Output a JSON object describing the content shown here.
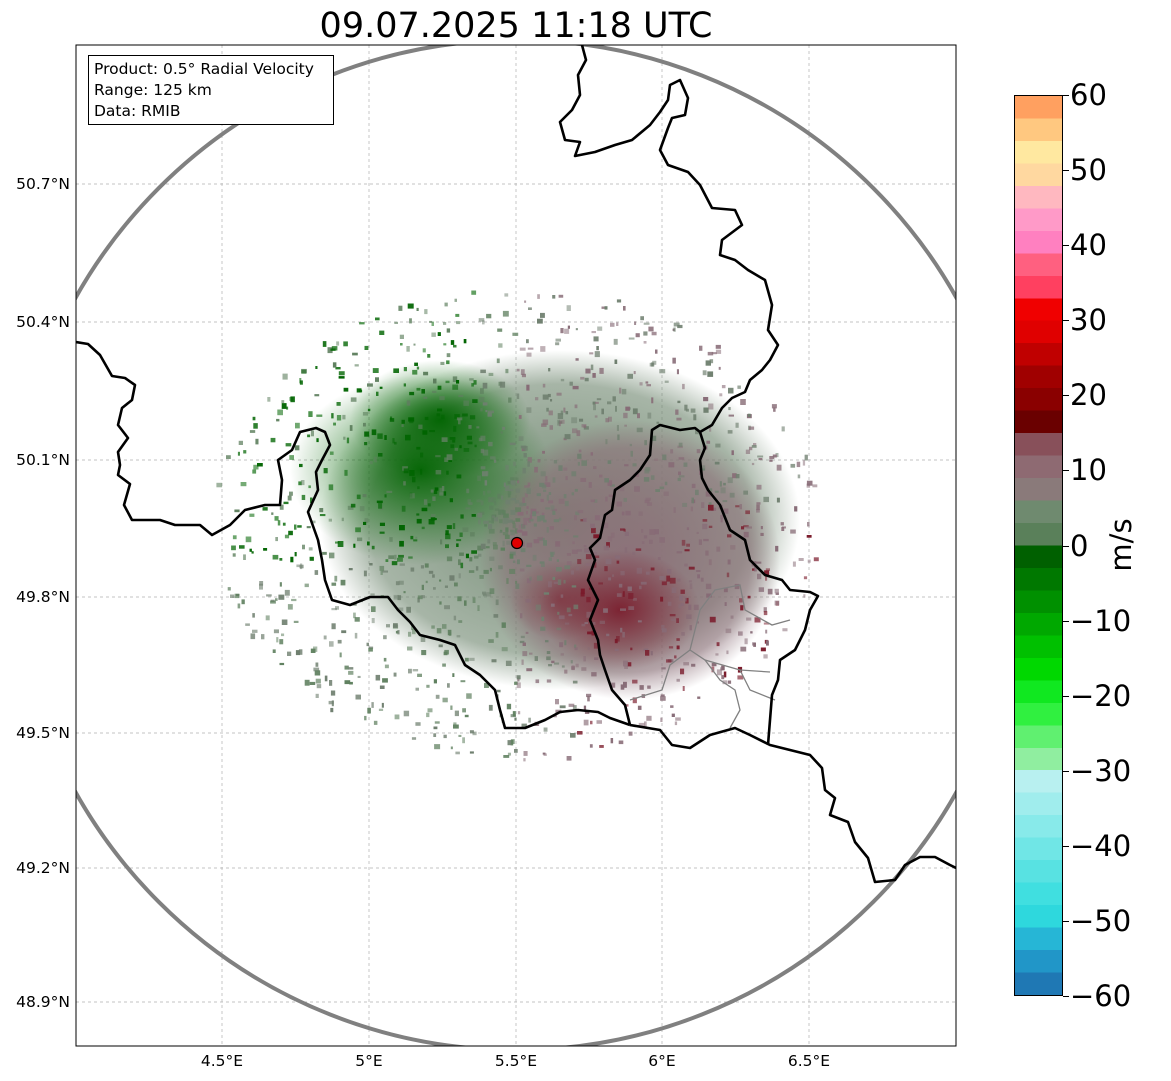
{
  "title": "09.07.2025 11:18 UTC",
  "info_box": {
    "product": "Product: 0.5° Radial Velocity",
    "range": "Range: 125 km",
    "data": "Data: RMIB"
  },
  "map": {
    "lon_range": [
      4.0,
      7.0
    ],
    "lat_range": [
      48.8,
      51.0
    ],
    "lat_ticks": [
      "50.7°N",
      "50.4°N",
      "50.1°N",
      "49.8°N",
      "49.5°N",
      "49.2°N",
      "48.9°N"
    ],
    "lon_ticks": [
      "4.5°E",
      "5°E",
      "5.5°E",
      "6°E",
      "6.5°E"
    ],
    "radar_site": {
      "lon": 5.505,
      "lat": 49.914
    },
    "range_ring_color": "#808080",
    "border_color": "#000000",
    "admin_border_color": "#808080",
    "gridlines": true
  },
  "velocity_field": {
    "dominant_colors": {
      "approaching_strong": "#006400",
      "approaching_weak": "#5e7f5e",
      "near_zero": "#6f7f6f",
      "receding_weak": "#876b76",
      "receding_strong": "#7a1a2a"
    }
  },
  "colorbar": {
    "label": "m/s",
    "ticks": [
      "60",
      "50",
      "40",
      "30",
      "20",
      "10",
      "0",
      "−10",
      "−20",
      "−30",
      "−40",
      "−50",
      "−60"
    ],
    "vmin": -60,
    "vmax": 60,
    "colors_bottom_to_top": [
      "#1f78b4",
      "#2196c8",
      "#26b6d6",
      "#2ed8dd",
      "#40dfe0",
      "#58e2e2",
      "#70e6e6",
      "#88eaea",
      "#a0eded",
      "#b8f0f0",
      "#90eea0",
      "#60f070",
      "#30f040",
      "#10e820",
      "#00d800",
      "#00c000",
      "#00a800",
      "#009000",
      "#007800",
      "#006000",
      "#5a805a",
      "#6f8a6f",
      "#8a7a7a",
      "#8e6a72",
      "#88505a",
      "#6a0000",
      "#8a0000",
      "#a00000",
      "#c00000",
      "#e00000",
      "#f00000",
      "#ff4060",
      "#ff6080",
      "#ff80c0",
      "#ff9ac8",
      "#ffb8c0",
      "#ffd8a0",
      "#ffe8a0",
      "#ffc880",
      "#ffa060"
    ]
  }
}
